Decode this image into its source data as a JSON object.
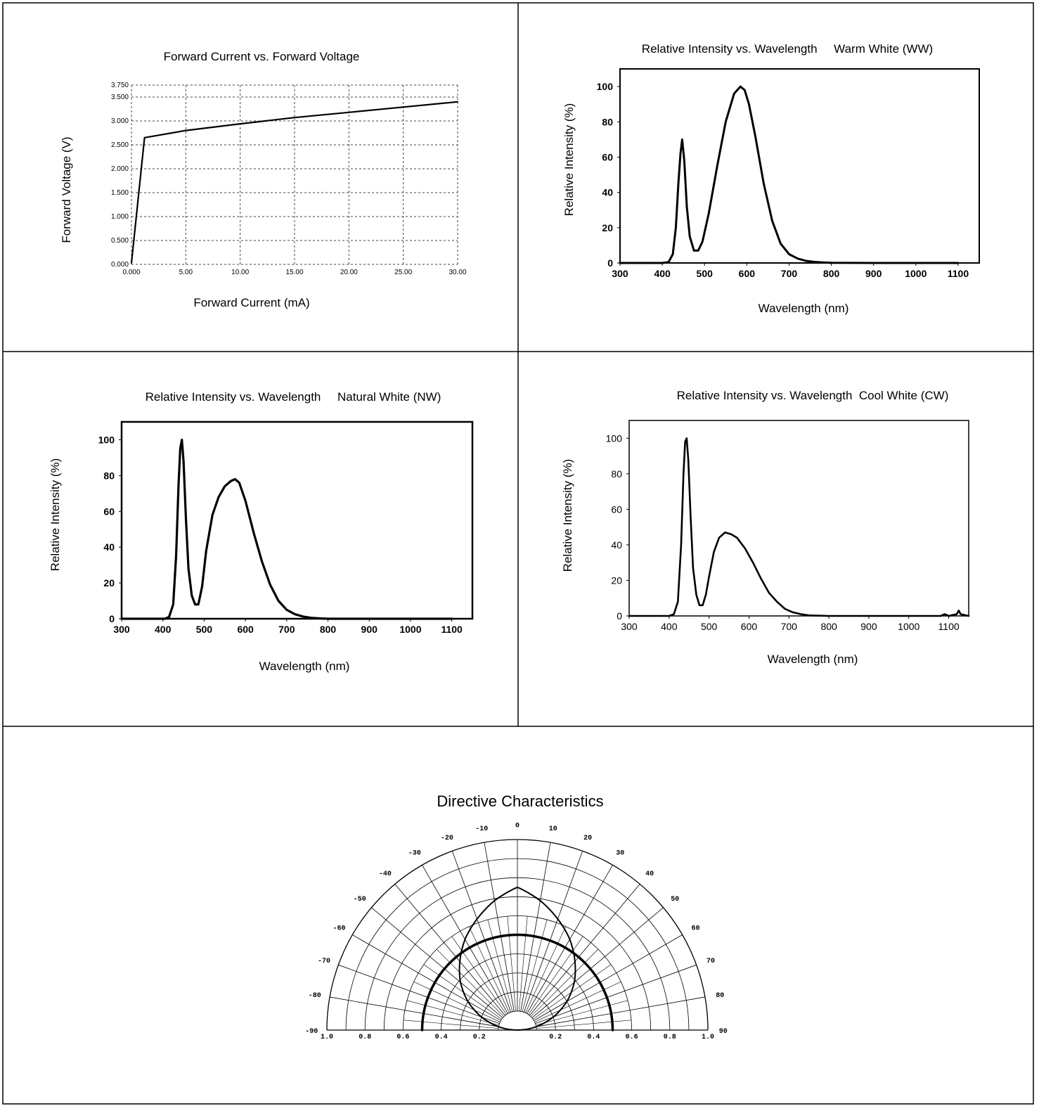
{
  "chart_data": [
    {
      "id": "fv",
      "type": "line",
      "title": "Forward Current vs. Forward Voltage",
      "xlabel": "Forward Current (mA)",
      "ylabel": "Forward Voltage (V)",
      "xlim": [
        0,
        30
      ],
      "ylim": [
        0,
        3.75
      ],
      "xticks": [
        "0.000",
        "5.00",
        "10.00",
        "15.00",
        "20.00",
        "25.00",
        "30.00"
      ],
      "xtick_values": [
        0,
        5,
        10,
        15,
        20,
        25,
        30
      ],
      "yticks": [
        "0.000",
        "0.500",
        "1.000",
        "1.500",
        "2.000",
        "2.500",
        "3.000",
        "3.500",
        "3.750"
      ],
      "ytick_values": [
        0,
        0.5,
        1.0,
        1.5,
        2.0,
        2.5,
        3.0,
        3.5,
        3.75
      ],
      "grid": true,
      "series": [
        {
          "x": [
            0,
            1.2,
            5,
            10,
            15,
            20,
            25,
            30
          ],
          "y": [
            0.03,
            2.65,
            2.8,
            2.94,
            3.07,
            3.18,
            3.29,
            3.4
          ]
        }
      ]
    },
    {
      "id": "ww",
      "type": "line",
      "title": "Relative Intensity vs. Wavelength     Warm White (WW)",
      "xlabel": "Wavelength (nm)",
      "ylabel": "Relative Intensity (%)",
      "xlim": [
        300,
        1150
      ],
      "ylim": [
        0,
        110
      ],
      "xticks": [
        "300",
        "400",
        "500",
        "600",
        "700",
        "800",
        "900",
        "1000",
        "1100"
      ],
      "xtick_values": [
        300,
        400,
        500,
        600,
        700,
        800,
        900,
        1000,
        1100
      ],
      "yticks": [
        "0",
        "20",
        "40",
        "60",
        "80",
        "100"
      ],
      "ytick_values": [
        0,
        20,
        40,
        60,
        80,
        100
      ],
      "grid": false,
      "series": [
        {
          "x": [
            300,
            400,
            415,
            425,
            432,
            438,
            443,
            447,
            452,
            458,
            465,
            475,
            485,
            495,
            510,
            530,
            550,
            570,
            585,
            595,
            605,
            620,
            640,
            660,
            680,
            700,
            720,
            740,
            760,
            780,
            800,
            900,
            1000,
            1100
          ],
          "y": [
            0,
            0,
            0.5,
            5,
            20,
            45,
            62,
            70,
            58,
            32,
            15,
            7,
            7,
            12,
            28,
            55,
            80,
            96,
            100,
            98,
            90,
            72,
            45,
            24,
            11,
            5,
            2.5,
            1.2,
            0.6,
            0.3,
            0.1,
            0,
            0,
            0
          ]
        }
      ]
    },
    {
      "id": "nw",
      "type": "line",
      "title": "Relative Intensity vs. Wavelength     Natural White (NW)",
      "xlabel": "Wavelength (nm)",
      "ylabel": "Relative Intensity (%)",
      "xlim": [
        300,
        1150
      ],
      "ylim": [
        0,
        110
      ],
      "xticks": [
        "300",
        "400",
        "500",
        "600",
        "700",
        "800",
        "900",
        "1000",
        "1100"
      ],
      "xtick_values": [
        300,
        400,
        500,
        600,
        700,
        800,
        900,
        1000,
        1100
      ],
      "yticks": [
        "0",
        "20",
        "40",
        "60",
        "80",
        "100"
      ],
      "ytick_values": [
        0,
        20,
        40,
        60,
        80,
        100
      ],
      "grid": false,
      "series": [
        {
          "x": [
            300,
            405,
            415,
            425,
            432,
            438,
            442,
            446,
            450,
            456,
            462,
            470,
            478,
            486,
            495,
            505,
            520,
            535,
            550,
            565,
            575,
            585,
            600,
            620,
            640,
            660,
            680,
            700,
            720,
            740,
            760,
            780,
            800,
            900,
            1000,
            1100
          ],
          "y": [
            0,
            0,
            1,
            8,
            35,
            75,
            95,
            100,
            88,
            55,
            28,
            13,
            8,
            8,
            18,
            38,
            58,
            68,
            74,
            77,
            78,
            76,
            66,
            48,
            32,
            19,
            10,
            5,
            2.5,
            1.2,
            0.5,
            0.2,
            0,
            0,
            0,
            0
          ]
        }
      ]
    },
    {
      "id": "cw",
      "type": "line",
      "title": "Relative Intensity vs. Wavelength  Cool White (CW)",
      "xlabel": "Wavelength (nm)",
      "ylabel": "Relative Intensity (%)",
      "xlim": [
        300,
        1150
      ],
      "ylim": [
        0,
        110
      ],
      "xticks": [
        "300",
        "400",
        "500",
        "600",
        "700",
        "800",
        "900",
        "1000",
        "1100"
      ],
      "xtick_values": [
        300,
        400,
        500,
        600,
        700,
        800,
        900,
        1000,
        1100
      ],
      "yticks": [
        "0",
        "20",
        "40",
        "60",
        "80",
        "100"
      ],
      "ytick_values": [
        0,
        20,
        40,
        60,
        80,
        100
      ],
      "grid": false,
      "series": [
        {
          "x": [
            300,
            400,
            412,
            422,
            430,
            436,
            440,
            444,
            448,
            454,
            460,
            468,
            476,
            484,
            492,
            500,
            512,
            525,
            540,
            555,
            570,
            590,
            610,
            630,
            650,
            670,
            690,
            710,
            730,
            750,
            800,
            900,
            1000,
            1080,
            1090,
            1100,
            1110,
            1120,
            1125,
            1130,
            1150
          ],
          "y": [
            0,
            0,
            1,
            8,
            40,
            80,
            98,
            100,
            88,
            55,
            27,
            12,
            6,
            6,
            12,
            22,
            36,
            44,
            47,
            46,
            44,
            38,
            30,
            21,
            13,
            8,
            4,
            2,
            1,
            0.3,
            0,
            0,
            0,
            0,
            1,
            0,
            0.5,
            1,
            3,
            1,
            0
          ]
        }
      ]
    },
    {
      "id": "dc",
      "type": "polar",
      "title": "Directive Characteristics",
      "angle_ticks": [
        "-90",
        "-80",
        "-70",
        "-60",
        "-50",
        "-40",
        "-30",
        "-20",
        "-10",
        "0",
        "10",
        "20",
        "30",
        "40",
        "50",
        "60",
        "70",
        "80",
        "90"
      ],
      "angle_values": [
        -90,
        -80,
        -70,
        -60,
        -50,
        -40,
        -30,
        -20,
        -10,
        0,
        10,
        20,
        30,
        40,
        50,
        60,
        70,
        80,
        90
      ],
      "radial_ticks": [
        "1.0",
        "0.8",
        "0.6",
        "0.4",
        "0.2",
        "0.2",
        "0.4",
        "0.6",
        "0.8",
        "1.0"
      ],
      "radial_tick_values": [
        -1.0,
        -0.8,
        -0.6,
        -0.4,
        -0.2,
        0.2,
        0.4,
        0.6,
        0.8,
        1.0
      ],
      "radial_rings": [
        0.1,
        0.2,
        0.3,
        0.4,
        0.5,
        0.6,
        0.7,
        0.8,
        0.9,
        1.0
      ],
      "rlim": [
        0,
        1.0
      ],
      "series": [
        {
          "angles": [
            -90,
            -80,
            -70,
            -60,
            -50,
            -40,
            -30,
            -20,
            -10,
            0,
            10,
            20,
            30,
            40,
            50,
            60,
            70,
            80,
            90
          ],
          "r": [
            0,
            0.1,
            0.2,
            0.3,
            0.39,
            0.47,
            0.55,
            0.62,
            0.69,
            0.75,
            0.69,
            0.62,
            0.55,
            0.47,
            0.39,
            0.3,
            0.2,
            0.1,
            0
          ]
        },
        {
          "angles": [
            -90,
            -60,
            -30,
            0,
            30,
            60,
            90
          ],
          "r": [
            0.5,
            0.5,
            0.5,
            0.5,
            0.5,
            0.5,
            0.5
          ]
        }
      ]
    }
  ]
}
